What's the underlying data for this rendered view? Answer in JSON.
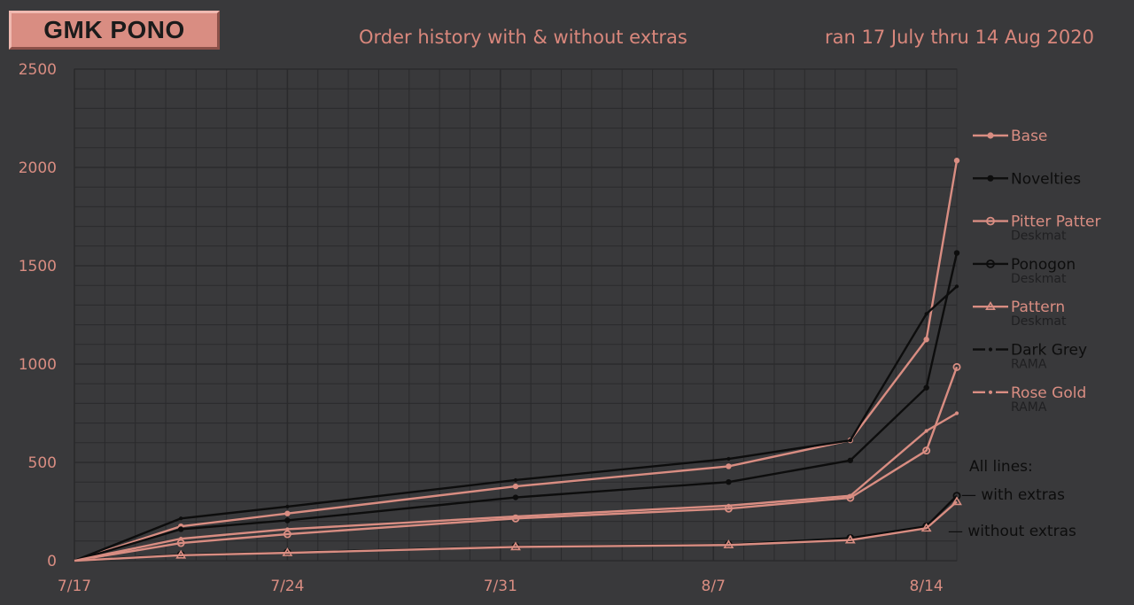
{
  "badge": "GMK PONO",
  "title": "Order history with & without extras",
  "subtitle": "ran 17 July thru 14 Aug 2020",
  "colors": {
    "background": "#39393b",
    "grid": "#2a2a2c",
    "accent": "#d98d82",
    "dark": "#0d0d0d",
    "caption": "#202022"
  },
  "chart_data": {
    "type": "line",
    "x_tick_labels": [
      "7/17",
      "7/24",
      "7/31",
      "8/7",
      "8/14"
    ],
    "y_tick_labels": [
      "0",
      "500",
      "1000",
      "1500",
      "2000",
      "2500"
    ],
    "xlim": [
      "2020-07-17",
      "2020-08-15"
    ],
    "ylim": [
      0,
      2500
    ],
    "grid": true,
    "legend_placement": "right",
    "series": [
      {
        "name": "Base",
        "color": "accent",
        "marker": "dot",
        "x": [
          "2020-07-17",
          "2020-07-20.5",
          "2020-07-24",
          "2020-07-31.5",
          "2020-08-07.5",
          "2020-08-11.5",
          "2020-08-14",
          "2020-08-15"
        ],
        "y": [
          0,
          175,
          240,
          378,
          480,
          612,
          1125,
          2035
        ]
      },
      {
        "name": "Novelties",
        "color": "dark",
        "marker": "dot",
        "x": [
          "2020-07-17",
          "2020-07-20.5",
          "2020-07-24",
          "2020-07-31.5",
          "2020-08-07.5",
          "2020-08-11.5",
          "2020-08-14",
          "2020-08-15"
        ],
        "y": [
          0,
          160,
          205,
          322,
          400,
          510,
          880,
          1565
        ]
      },
      {
        "name": "Pitter Patter",
        "caption": "Deskmat",
        "color": "accent",
        "marker": "circle",
        "x": [
          "2020-07-17",
          "2020-07-20.5",
          "2020-07-24",
          "2020-07-31.5",
          "2020-08-07.5",
          "2020-08-11.5",
          "2020-08-14",
          "2020-08-15"
        ],
        "y": [
          0,
          90,
          135,
          215,
          265,
          320,
          560,
          985
        ]
      },
      {
        "name": "Ponogon",
        "caption": "Deskmat",
        "color": "dark",
        "marker": "circle",
        "x": [
          "2020-07-17",
          "2020-07-20.5",
          "2020-07-24",
          "2020-07-31.5",
          "2020-08-07.5",
          "2020-08-11.5",
          "2020-08-14",
          "2020-08-15"
        ],
        "y": [
          0,
          30,
          42,
          72,
          82,
          115,
          175,
          330
        ]
      },
      {
        "name": "Pattern",
        "caption": "Deskmat",
        "color": "accent",
        "marker": "triangle",
        "x": [
          "2020-07-17",
          "2020-07-20.5",
          "2020-07-24",
          "2020-07-31.5",
          "2020-08-07.5",
          "2020-08-11.5",
          "2020-08-14",
          "2020-08-15"
        ],
        "y": [
          0,
          28,
          40,
          70,
          80,
          105,
          165,
          300
        ]
      },
      {
        "name": "Dark Grey",
        "caption": "RAMA",
        "color": "dark",
        "marker": "dash-dot",
        "x": [
          "2020-07-17",
          "2020-07-20.5",
          "2020-07-24",
          "2020-07-31.5",
          "2020-08-07.5",
          "2020-08-11.5",
          "2020-08-14",
          "2020-08-15"
        ],
        "y": [
          0,
          215,
          275,
          410,
          518,
          612,
          1255,
          1395
        ]
      },
      {
        "name": "Rose Gold",
        "caption": "RAMA",
        "color": "accent",
        "marker": "dash-dot",
        "x": [
          "2020-07-17",
          "2020-07-20.5",
          "2020-07-24",
          "2020-07-31.5",
          "2020-08-07.5",
          "2020-08-11.5",
          "2020-08-14",
          "2020-08-15"
        ],
        "y": [
          0,
          112,
          160,
          225,
          280,
          330,
          660,
          750
        ]
      }
    ],
    "annotations": {
      "heading": "All lines:",
      "with_extras": "— with extras",
      "without_extras": "— without extras"
    }
  }
}
